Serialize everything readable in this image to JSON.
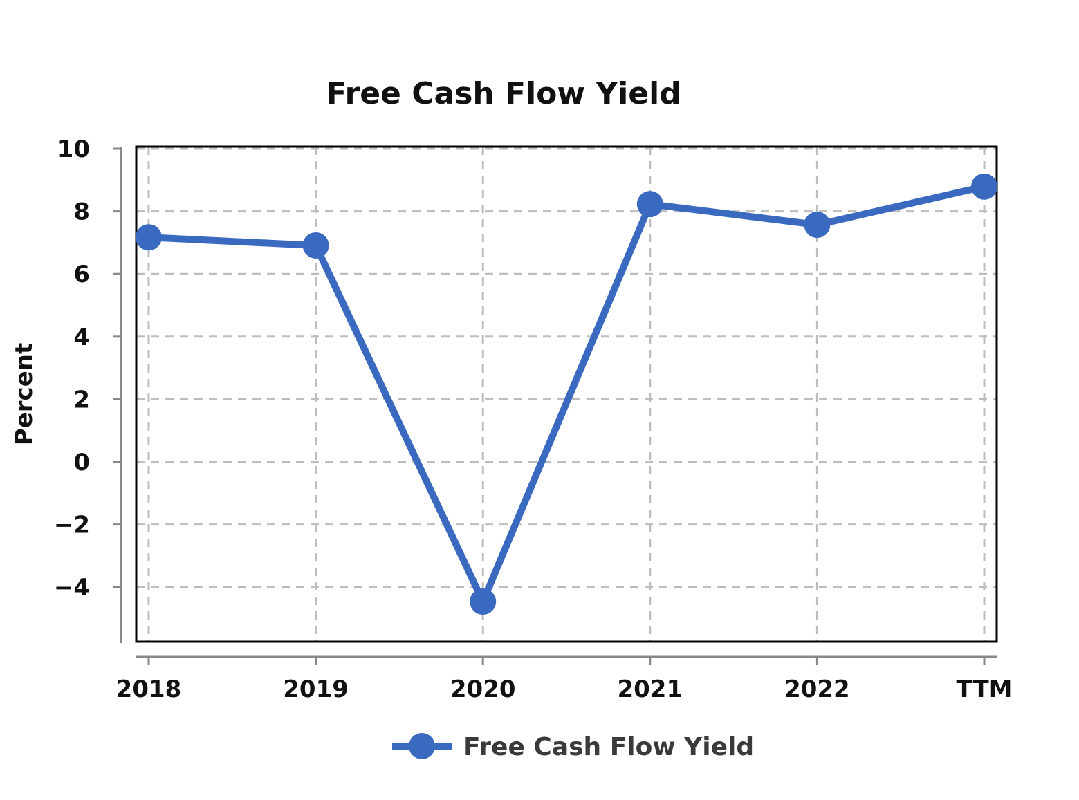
{
  "chart_data": {
    "type": "line",
    "title": "Free Cash Flow Yield",
    "xlabel": "",
    "ylabel": "Percent",
    "categories": [
      "2018",
      "2019",
      "2020",
      "2021",
      "2022",
      "TTM"
    ],
    "series": [
      {
        "name": "Free Cash Flow Yield",
        "color": "#3a6abf",
        "values": [
          7.17,
          6.91,
          -4.46,
          8.23,
          7.57,
          8.79
        ]
      }
    ],
    "ylim": [
      -5.8,
      10
    ],
    "yticks": [
      10,
      8,
      6,
      4,
      2,
      0,
      -2,
      -4
    ],
    "ytick_labels": [
      "10",
      "8",
      "6",
      "4",
      "2",
      "0",
      "−2",
      "−4"
    ],
    "grid": true,
    "legend_position": "bottom"
  },
  "legend": {
    "label": "Free Cash Flow Yield"
  }
}
